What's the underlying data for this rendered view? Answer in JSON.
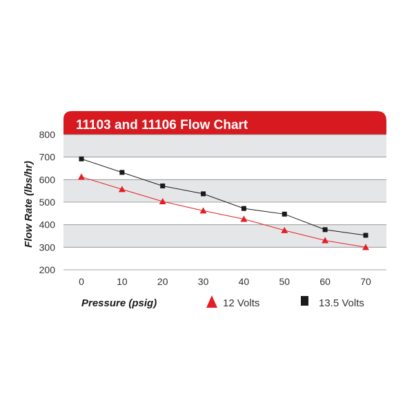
{
  "chart_data": {
    "type": "line",
    "title": "11103 and 11106 Flow Chart",
    "xlabel": "Pressure (psig)",
    "ylabel": "Flow Rate (lbs/hr)",
    "x": [
      0,
      10,
      20,
      30,
      40,
      50,
      60,
      70
    ],
    "xlim": [
      0,
      70
    ],
    "ylim": [
      200,
      800
    ],
    "yticks": [
      "800",
      "700",
      "600",
      "500",
      "400",
      "300",
      "200"
    ],
    "xticks": [
      "0",
      "10",
      "20",
      "30",
      "40",
      "50",
      "60",
      "70"
    ],
    "series": [
      {
        "name": "12 Volts",
        "marker": "triangle",
        "color": "#e41e26",
        "values": [
          612,
          557,
          503,
          462,
          425,
          375,
          330,
          300
        ]
      },
      {
        "name": "13.5 Volts",
        "marker": "square",
        "color": "#1a1a1a",
        "values": [
          692,
          632,
          572,
          537,
          472,
          447,
          378,
          353
        ]
      }
    ],
    "grid": "alternating horizontal bands",
    "legend_placement": "bottom"
  },
  "colors": {
    "title_bar": "#d71920",
    "band_gray": "#e5e6e8",
    "band_white": "#ffffff"
  }
}
